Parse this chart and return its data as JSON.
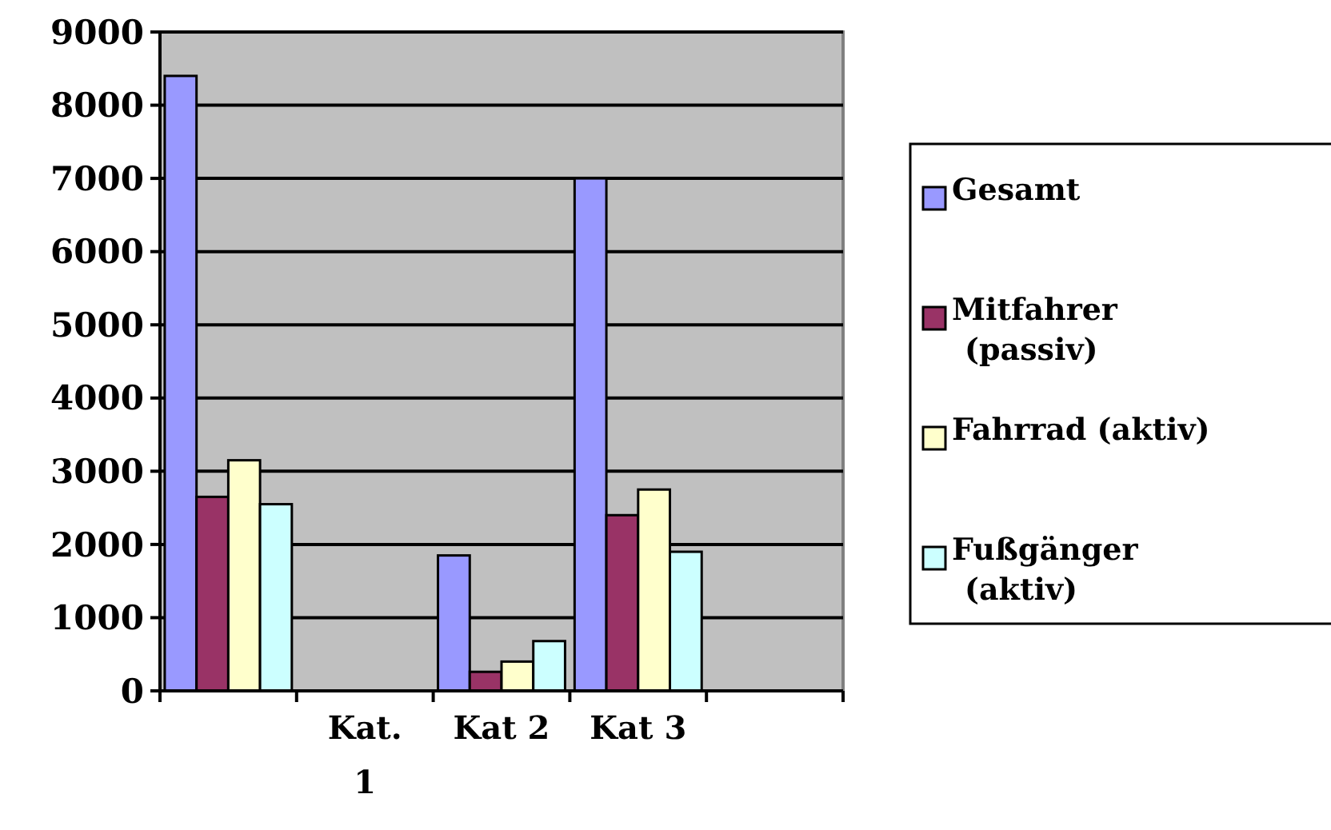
{
  "chart_data": {
    "type": "bar",
    "categories": [
      null,
      "Kat. 1",
      "Kat 2",
      "Kat 3",
      null
    ],
    "series": [
      {
        "name": "Gesamt",
        "color": "#9999ff",
        "values": [
          8400,
          null,
          1850,
          7000,
          null
        ]
      },
      {
        "name": "Mitfahrer (passiv)",
        "color": "#993366",
        "values": [
          2650,
          null,
          260,
          2400,
          null
        ]
      },
      {
        "name": "Fahrrad (aktiv)",
        "color": "#ffffcc",
        "values": [
          3150,
          null,
          400,
          2750,
          null
        ]
      },
      {
        "name": "Fußgänger (aktiv)",
        "color": "#ccffff",
        "values": [
          2550,
          null,
          680,
          1900,
          null
        ]
      }
    ],
    "ylim": [
      0,
      9000
    ],
    "yticks": [
      0,
      1000,
      2000,
      3000,
      4000,
      5000,
      6000,
      7000,
      8000,
      9000
    ],
    "grid": "y",
    "legend": "right"
  }
}
